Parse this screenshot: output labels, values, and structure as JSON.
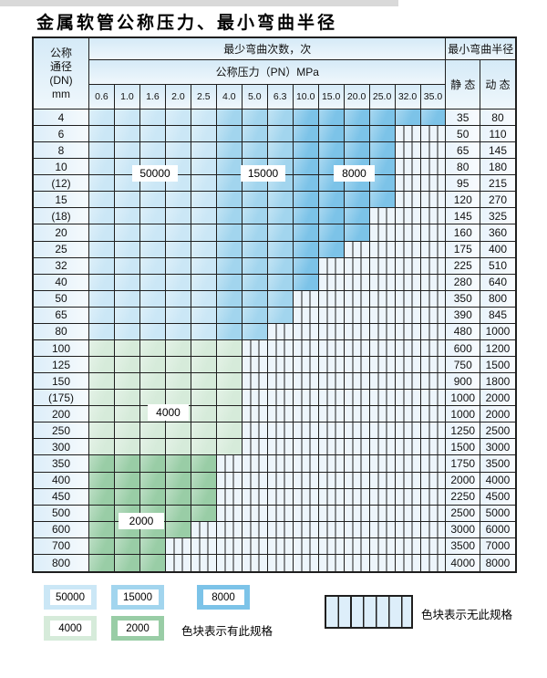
{
  "page": {
    "title": "金属软管公称压力、最小弯曲半径"
  },
  "colors": {
    "blue_light": "#cbe7f6",
    "blue_medium": "#a2d5ee",
    "blue_dark": "#7cc3e8",
    "green_light": "#d6ebda",
    "green_dark": "#99cda6",
    "stripe_bg": "#edf5fb",
    "border": "#1f1f1f",
    "header_bg_top": "#d5eaf7",
    "header_bg_bottom": "#eff7fc"
  },
  "table": {
    "header": {
      "dn_lines": [
        "公称",
        "通径",
        "(DN)",
        "mm"
      ],
      "min_bend_cycles": "最少弯曲次数，次",
      "nominal_pressure": "公称压力（PN）MPa",
      "min_bend_radius": "最小弯曲半径",
      "static_label": "静 态",
      "dynamic_label": "动 态",
      "pressures": [
        "0.6",
        "1.0",
        "1.6",
        "2.0",
        "2.5",
        "4.0",
        "5.0",
        "6.3",
        "10.0",
        "15.0",
        "20.0",
        "25.0",
        "32.0",
        "35.0"
      ]
    },
    "blue_zones": {
      "light_cols": 5,
      "medium_cols": 3,
      "light_value": "50000",
      "medium_value": "15000",
      "dark_value": "8000"
    },
    "green_zones": {
      "light_value": "4000",
      "dark_value": "2000"
    },
    "rows": [
      {
        "dn": "4",
        "colored": 14,
        "palette": "blue",
        "static": "35",
        "dynamic": "80"
      },
      {
        "dn": "6",
        "colored": 12,
        "palette": "blue",
        "static": "50",
        "dynamic": "110"
      },
      {
        "dn": "8",
        "colored": 12,
        "palette": "blue",
        "static": "65",
        "dynamic": "145"
      },
      {
        "dn": "10",
        "colored": 12,
        "palette": "blue",
        "static": "80",
        "dynamic": "180"
      },
      {
        "dn": "(12)",
        "colored": 12,
        "palette": "blue",
        "static": "95",
        "dynamic": "215"
      },
      {
        "dn": "15",
        "colored": 12,
        "palette": "blue",
        "static": "120",
        "dynamic": "270"
      },
      {
        "dn": "(18)",
        "colored": 11,
        "palette": "blue",
        "static": "145",
        "dynamic": "325"
      },
      {
        "dn": "20",
        "colored": 11,
        "palette": "blue",
        "static": "160",
        "dynamic": "360"
      },
      {
        "dn": "25",
        "colored": 10,
        "palette": "blue",
        "static": "175",
        "dynamic": "400"
      },
      {
        "dn": "32",
        "colored": 9,
        "palette": "blue",
        "static": "225",
        "dynamic": "510"
      },
      {
        "dn": "40",
        "colored": 9,
        "palette": "blue",
        "static": "280",
        "dynamic": "640"
      },
      {
        "dn": "50",
        "colored": 8,
        "palette": "blue",
        "static": "350",
        "dynamic": "800"
      },
      {
        "dn": "65",
        "colored": 8,
        "palette": "blue",
        "static": "390",
        "dynamic": "845"
      },
      {
        "dn": "80",
        "colored": 7,
        "palette": "blue",
        "static": "480",
        "dynamic": "1000"
      },
      {
        "dn": "100",
        "colored": 6,
        "palette": "green_light",
        "static": "600",
        "dynamic": "1200"
      },
      {
        "dn": "125",
        "colored": 6,
        "palette": "green_light",
        "static": "750",
        "dynamic": "1500"
      },
      {
        "dn": "150",
        "colored": 6,
        "palette": "green_light",
        "static": "900",
        "dynamic": "1800"
      },
      {
        "dn": "(175)",
        "colored": 6,
        "palette": "green_light",
        "static": "1000",
        "dynamic": "2000"
      },
      {
        "dn": "200",
        "colored": 6,
        "palette": "green_light",
        "static": "1000",
        "dynamic": "2000"
      },
      {
        "dn": "250",
        "colored": 6,
        "palette": "green_light",
        "static": "1250",
        "dynamic": "2500"
      },
      {
        "dn": "300",
        "colored": 6,
        "palette": "green_light",
        "static": "1500",
        "dynamic": "3000"
      },
      {
        "dn": "350",
        "colored": 5,
        "palette": "green_dark",
        "static": "1750",
        "dynamic": "3500"
      },
      {
        "dn": "400",
        "colored": 5,
        "palette": "green_dark",
        "static": "2000",
        "dynamic": "4000"
      },
      {
        "dn": "450",
        "colored": 5,
        "palette": "green_dark",
        "static": "2250",
        "dynamic": "4500"
      },
      {
        "dn": "500",
        "colored": 5,
        "palette": "green_dark",
        "static": "2500",
        "dynamic": "5000"
      },
      {
        "dn": "600",
        "colored": 4,
        "palette": "green_dark",
        "static": "3000",
        "dynamic": "6000"
      },
      {
        "dn": "700",
        "colored": 3,
        "palette": "green_dark",
        "static": "3500",
        "dynamic": "7000"
      },
      {
        "dn": "800",
        "colored": 3,
        "palette": "green_dark",
        "static": "4000",
        "dynamic": "8000"
      }
    ]
  },
  "region_labels": [
    {
      "text": "50000"
    },
    {
      "text": "15000"
    },
    {
      "text": "8000"
    },
    {
      "text": "4000"
    },
    {
      "text": "2000"
    }
  ],
  "legend": {
    "items": [
      {
        "value": "50000",
        "color_key": "blue_light"
      },
      {
        "value": "15000",
        "color_key": "blue_medium"
      },
      {
        "value": "8000",
        "color_key": "blue_dark"
      },
      {
        "value": "4000",
        "color_key": "green_light"
      },
      {
        "value": "2000",
        "color_key": "green_dark"
      }
    ],
    "has_spec_note": "色块表示有此规格",
    "no_spec_note": "色块表示无此规格"
  }
}
